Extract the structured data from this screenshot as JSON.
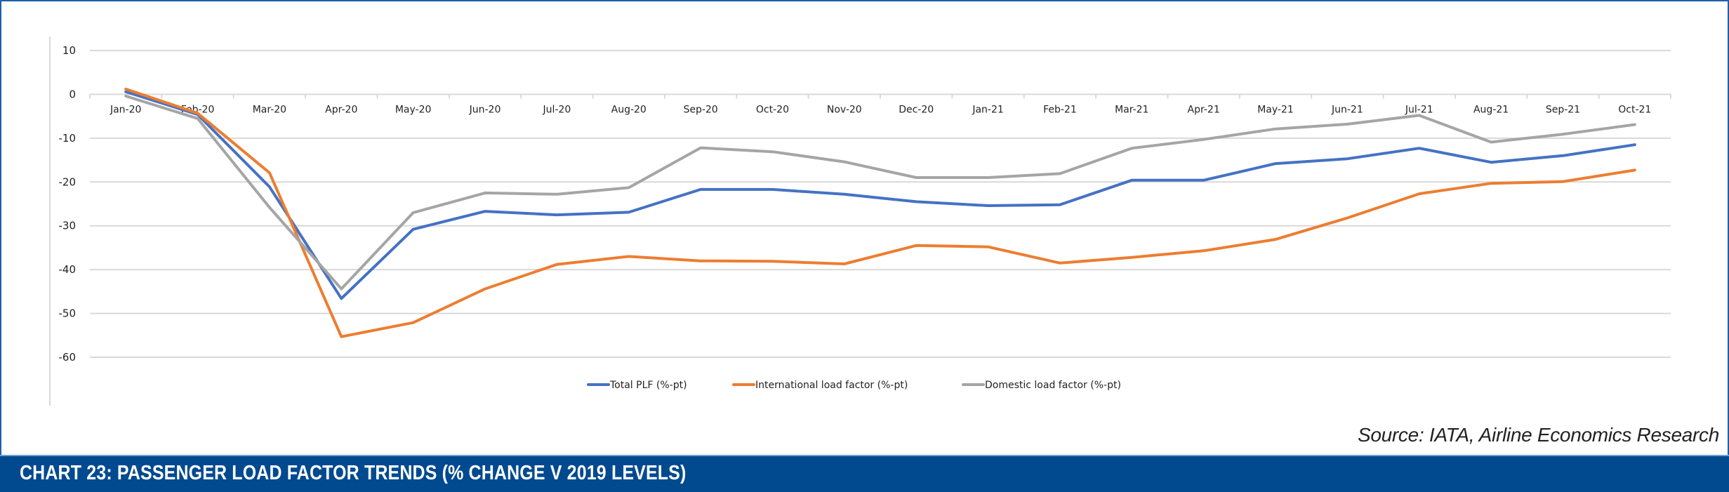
{
  "chart_data": {
    "type": "line",
    "title": "CHART 23: PASSENGER LOAD FACTOR TRENDS (% CHANGE V 2019 LEVELS)",
    "source": "Source: IATA, Airline Economics Research",
    "xlabel": "",
    "ylabel": "",
    "ylim": [
      -60,
      10
    ],
    "yticks": [
      10,
      0,
      -10,
      -20,
      -30,
      -40,
      -50,
      -60
    ],
    "grid": true,
    "legend_position": "bottom",
    "categories": [
      "Jan-20",
      "Feb-20",
      "Mar-20",
      "Apr-20",
      "May-20",
      "Jun-20",
      "Jul-20",
      "Aug-20",
      "Sep-20",
      "Oct-20",
      "Nov-20",
      "Dec-20",
      "Jan-21",
      "Feb-21",
      "Mar-21",
      "Apr-21",
      "May-21",
      "Jun-21",
      "Jul-21",
      "Aug-21",
      "Sep-21",
      "Oct-21"
    ],
    "series": [
      {
        "name": "Total PLF (%-pt)",
        "color": "#4472C4",
        "values": [
          0.6,
          -4.6,
          -21.1,
          -46.6,
          -30.8,
          -26.7,
          -27.5,
          -26.9,
          -21.7,
          -21.7,
          -22.8,
          -24.5,
          -25.4,
          -25.2,
          -19.6,
          -19.6,
          -15.8,
          -14.7,
          -12.3,
          -15.5,
          -14.0,
          -11.5
        ]
      },
      {
        "name": "International load factor (%-pt)",
        "color": "#ED7D31",
        "values": [
          1.2,
          -4.3,
          -17.9,
          -55.3,
          -52.1,
          -44.4,
          -38.8,
          -37.0,
          -38.0,
          -38.1,
          -38.7,
          -34.5,
          -34.8,
          -38.5,
          -37.2,
          -35.7,
          -33.1,
          -28.2,
          -22.7,
          -20.3,
          -19.9,
          -17.3
        ]
      },
      {
        "name": "Domestic load factor (%-pt)",
        "color": "#A5A5A5",
        "values": [
          -0.4,
          -5.5,
          -25.8,
          -44.4,
          -27.0,
          -22.5,
          -22.8,
          -21.3,
          -12.2,
          -13.1,
          -15.4,
          -19.0,
          -19.0,
          -18.1,
          -12.3,
          -10.3,
          -7.9,
          -6.8,
          -4.8,
          -10.9,
          -9.1,
          -6.9
        ]
      }
    ]
  },
  "colors": {
    "title_bar": "#024a8f",
    "frame_border": "#1f5fa8",
    "gridline": "#d9d9d9"
  }
}
